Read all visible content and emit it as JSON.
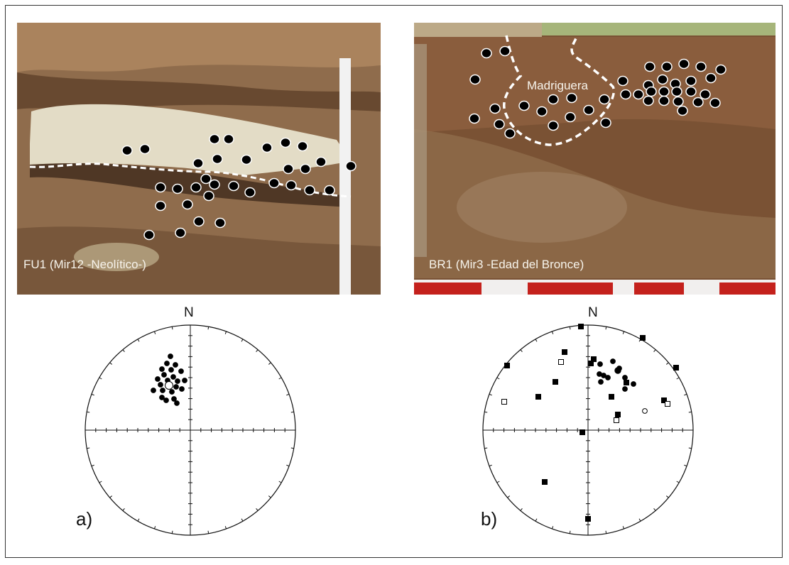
{
  "figure": {
    "panel_a": {
      "photo_caption": "FU1 (Mir12 -Neolítico-)",
      "north_label": "N",
      "panel_label": "a)"
    },
    "panel_b": {
      "photo_caption": "BR1 (Mir3 -Edad del Bronce)",
      "burrow_label": "Madriguera",
      "north_label": "N",
      "panel_label": "b)"
    }
  },
  "colors": {
    "sediment_dark": "#6b4a30",
    "sediment_light": "#9a7452",
    "ash_layer": "#e3dcc6",
    "sample_marker": "#000000",
    "outline": "#ffffff"
  },
  "chart_data": [
    {
      "type": "scatter",
      "projection": "stereonet",
      "series": [
        {
          "marker": "filled-circle",
          "points": []
        }
      ]
    },
    {
      "type": "scatter",
      "projection": "stereonet",
      "series": [
        {
          "marker": "filled-square",
          "points": []
        },
        {
          "marker": "open-square",
          "points": []
        },
        {
          "marker": "filled-circle",
          "points": []
        },
        {
          "marker": "open-circle",
          "points": []
        }
      ]
    }
  ]
}
